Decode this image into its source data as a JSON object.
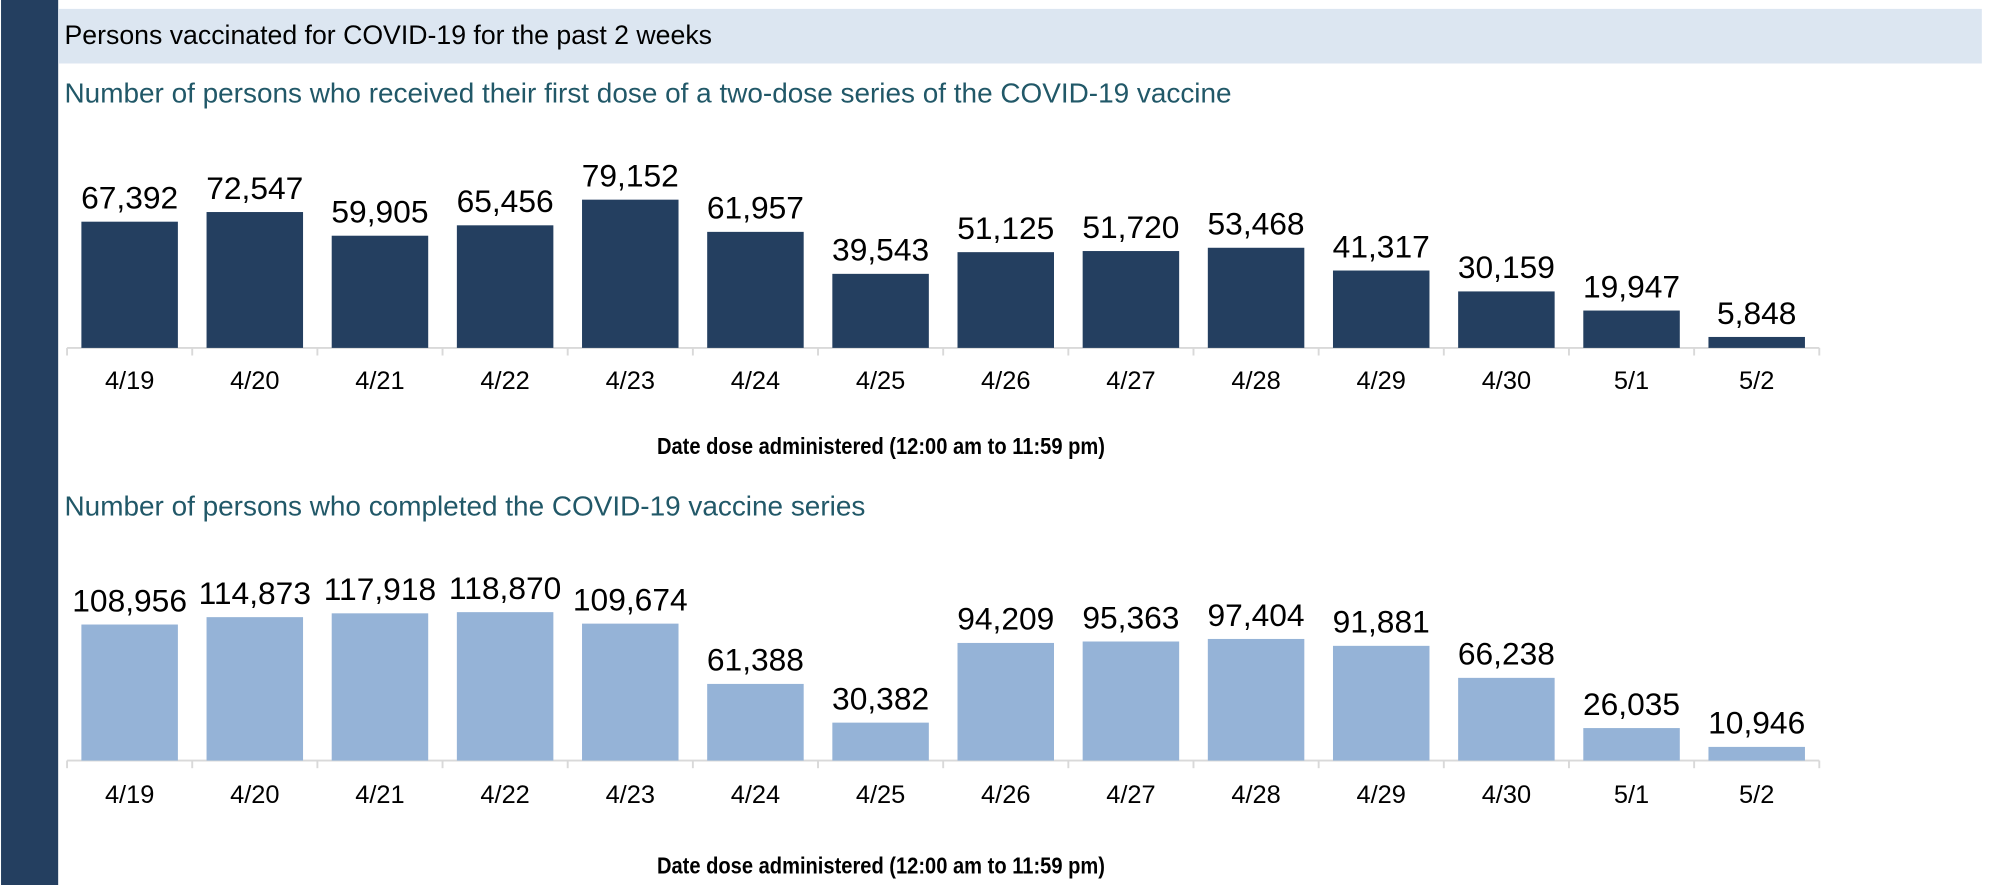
{
  "header": {
    "title": "Persons vaccinated for COVID-19 for the past 2 weeks"
  },
  "chart_data": [
    {
      "type": "bar",
      "title": "Number of persons who received their first dose of a two-dose series of the COVID-19 vaccine",
      "x_label": "Date dose administered (12:00 am to 11:59 pm)",
      "categories": [
        "4/19",
        "4/20",
        "4/21",
        "4/22",
        "4/23",
        "4/24",
        "4/25",
        "4/26",
        "4/27",
        "4/28",
        "4/29",
        "4/30",
        "5/1",
        "5/2"
      ],
      "values": [
        67392,
        72547,
        59905,
        65456,
        79152,
        61957,
        39543,
        51125,
        51720,
        53468,
        41317,
        30159,
        19947,
        5848
      ],
      "value_labels": [
        "67,392",
        "72,547",
        "59,905",
        "65,456",
        "79,152",
        "61,957",
        "39,543",
        "51,125",
        "51,720",
        "53,468",
        "41,317",
        "30,159",
        "19,947",
        "5,848"
      ],
      "color": "#243f60",
      "ylim": [
        0,
        80000
      ]
    },
    {
      "type": "bar",
      "title": "Number of persons who completed the COVID-19 vaccine series",
      "x_label": "Date dose administered (12:00 am to 11:59 pm)",
      "categories": [
        "4/19",
        "4/20",
        "4/21",
        "4/22",
        "4/23",
        "4/24",
        "4/25",
        "4/26",
        "4/27",
        "4/28",
        "4/29",
        "4/30",
        "5/1",
        "5/2"
      ],
      "values": [
        108956,
        114873,
        117918,
        118870,
        109674,
        61388,
        30382,
        94209,
        95363,
        97404,
        91881,
        66238,
        26035,
        10946
      ],
      "value_labels": [
        "108,956",
        "114,873",
        "117,918",
        "118,870",
        "109,674",
        "61,388",
        "30,382",
        "94,209",
        "95,363",
        "97,404",
        "91,881",
        "66,238",
        "26,035",
        "10,946"
      ],
      "color": "#95b3d7",
      "ylim": [
        0,
        120000
      ]
    }
  ]
}
